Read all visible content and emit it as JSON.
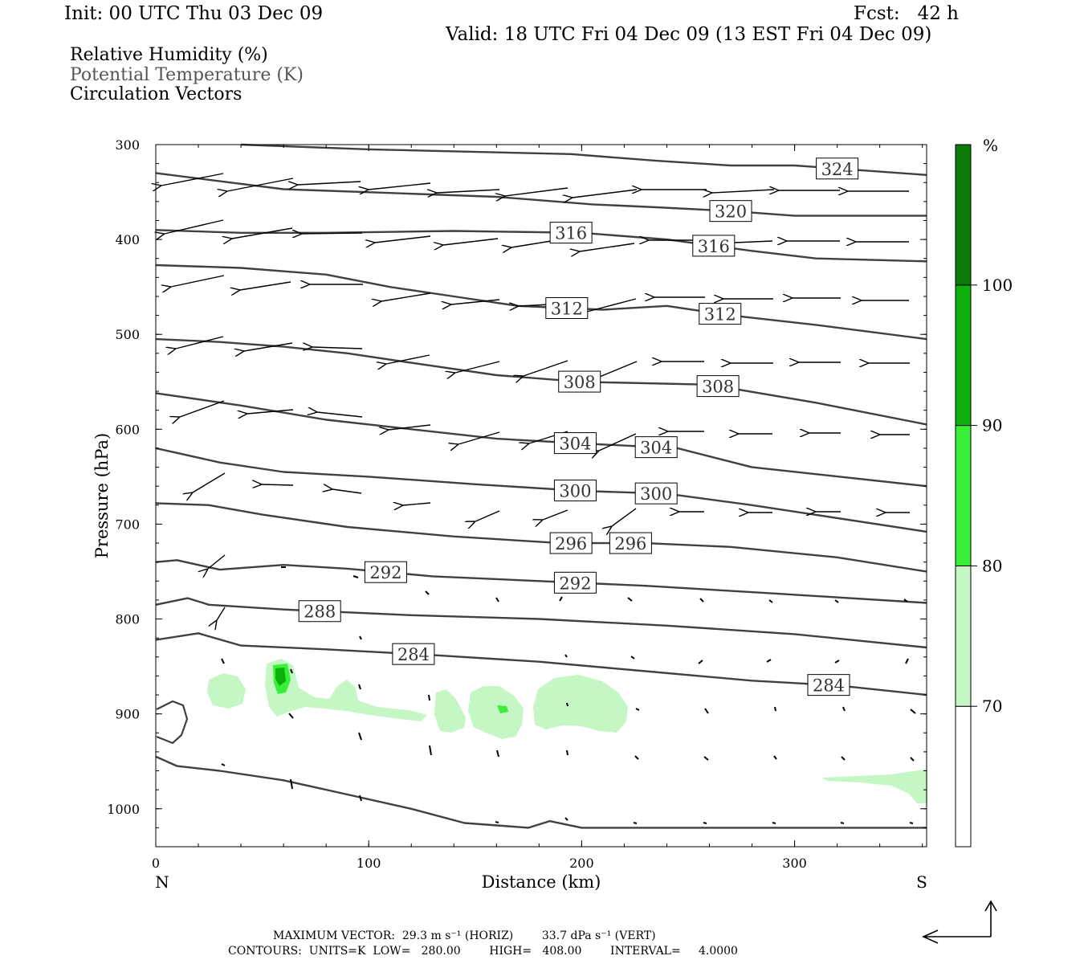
{
  "header": {
    "init": "Init: 00 UTC Thu 03 Dec 09",
    "fcst": "Fcst:   42 h",
    "valid": "Valid: 18 UTC Fri 04 Dec 09 (13 EST Fri 04 Dec 09)"
  },
  "legend": {
    "rh": "Relative Humidity (%)",
    "theta": "Potential Temperature (K)",
    "vectors": "Circulation Vectors"
  },
  "footer": {
    "max_vector": "MAXIMUM VECTOR:  29.3 m s⁻¹ (HORIZ)        33.7 dPa s⁻¹ (VERT)",
    "contours": "CONTOURS:  UNITS=K  LOW=   280.00        HIGH=   408.00        INTERVAL=     4.0000"
  },
  "colors": {
    "rh70": "#c5f7c5",
    "rh80": "#38f038",
    "rh90": "#0cb00c",
    "rh100": "#0a7a0a",
    "contour": "#404040"
  },
  "chart_data": {
    "type": "cross-section",
    "xlabel": "Distance (km)",
    "ylabel": "Pressure (hPa)",
    "xlim": [
      0,
      362
    ],
    "ylim": [
      1040,
      300
    ],
    "x_ticks": [
      0,
      100,
      200,
      300
    ],
    "y_ticks": [
      300,
      400,
      500,
      600,
      700,
      800,
      900,
      1000
    ],
    "end_labels": {
      "left": "N",
      "right": "S"
    },
    "colorbar": {
      "unit": "%",
      "levels": [
        70,
        80,
        90,
        100
      ],
      "colors": [
        "#c5f7c5",
        "#38f038",
        "#0cb00c",
        "#0a7a0a"
      ]
    },
    "isentropes": [
      {
        "value": 324,
        "points": [
          [
            40,
            300
          ],
          [
            100,
            305
          ],
          [
            195,
            310
          ],
          [
            235,
            317
          ],
          [
            270,
            322
          ],
          [
            300,
            322
          ],
          [
            362,
            332
          ]
        ]
      },
      {
        "value": 320,
        "points": [
          [
            0,
            330
          ],
          [
            35,
            340
          ],
          [
            60,
            347
          ],
          [
            110,
            351
          ],
          [
            160,
            355
          ],
          [
            205,
            363
          ],
          [
            235,
            366
          ],
          [
            270,
            370
          ],
          [
            300,
            375
          ],
          [
            362,
            375
          ]
        ]
      },
      {
        "value": 316,
        "points": [
          [
            0,
            390
          ],
          [
            40,
            393
          ],
          [
            80,
            393
          ],
          [
            140,
            391
          ],
          [
            200,
            393
          ],
          [
            240,
            400
          ],
          [
            280,
            412
          ],
          [
            310,
            420
          ],
          [
            362,
            423
          ]
        ]
      },
      {
        "value": 312,
        "points": [
          [
            0,
            427
          ],
          [
            40,
            430
          ],
          [
            80,
            437
          ],
          [
            110,
            450
          ],
          [
            140,
            460
          ],
          [
            170,
            470
          ],
          [
            210,
            474
          ],
          [
            240,
            470
          ],
          [
            270,
            480
          ],
          [
            310,
            490
          ],
          [
            362,
            505
          ]
        ]
      },
      {
        "value": 308,
        "points": [
          [
            0,
            505
          ],
          [
            30,
            508
          ],
          [
            60,
            513
          ],
          [
            90,
            520
          ],
          [
            120,
            530
          ],
          [
            160,
            543
          ],
          [
            200,
            550
          ],
          [
            260,
            553
          ],
          [
            310,
            572
          ],
          [
            362,
            595
          ]
        ]
      },
      {
        "value": 304,
        "points": [
          [
            0,
            562
          ],
          [
            40,
            575
          ],
          [
            80,
            590
          ],
          [
            120,
            600
          ],
          [
            160,
            610
          ],
          [
            200,
            615
          ],
          [
            245,
            620
          ],
          [
            280,
            640
          ],
          [
            362,
            660
          ]
        ]
      },
      {
        "value": 300,
        "points": [
          [
            0,
            620
          ],
          [
            30,
            635
          ],
          [
            60,
            645
          ],
          [
            100,
            650
          ],
          [
            150,
            658
          ],
          [
            200,
            665
          ],
          [
            240,
            668
          ],
          [
            280,
            680
          ],
          [
            362,
            708
          ]
        ]
      },
      {
        "value": 296,
        "points": [
          [
            0,
            678
          ],
          [
            25,
            680
          ],
          [
            50,
            690
          ],
          [
            90,
            703
          ],
          [
            140,
            713
          ],
          [
            190,
            720
          ],
          [
            230,
            720
          ],
          [
            270,
            724
          ],
          [
            320,
            735
          ],
          [
            362,
            750
          ]
        ]
      },
      {
        "value": 292,
        "points": [
          [
            0,
            740
          ],
          [
            10,
            738
          ],
          [
            30,
            748
          ],
          [
            60,
            743
          ],
          [
            90,
            747
          ],
          [
            130,
            755
          ],
          [
            180,
            760
          ],
          [
            230,
            765
          ],
          [
            290,
            773
          ],
          [
            362,
            783
          ]
        ]
      },
      {
        "value": 288,
        "points": [
          [
            0,
            785
          ],
          [
            15,
            778
          ],
          [
            25,
            785
          ],
          [
            60,
            790
          ],
          [
            120,
            796
          ],
          [
            180,
            800
          ],
          [
            240,
            807
          ],
          [
            300,
            816
          ],
          [
            362,
            830
          ]
        ]
      },
      {
        "value": 284,
        "points": [
          [
            0,
            822
          ],
          [
            20,
            815
          ],
          [
            40,
            828
          ],
          [
            80,
            832
          ],
          [
            130,
            838
          ],
          [
            180,
            845
          ],
          [
            230,
            855
          ],
          [
            280,
            865
          ],
          [
            320,
            870
          ],
          [
            362,
            880
          ]
        ]
      },
      {
        "value": 280,
        "points": [
          [
            0,
            945
          ],
          [
            10,
            955
          ],
          [
            30,
            960
          ],
          [
            60,
            970
          ],
          [
            90,
            985
          ],
          [
            120,
            1000
          ],
          [
            145,
            1015
          ],
          [
            175,
            1020
          ],
          [
            185,
            1013
          ],
          [
            200,
            1020
          ],
          [
            250,
            1020
          ],
          [
            300,
            1020
          ],
          [
            362,
            1020
          ]
        ]
      }
    ]
  }
}
